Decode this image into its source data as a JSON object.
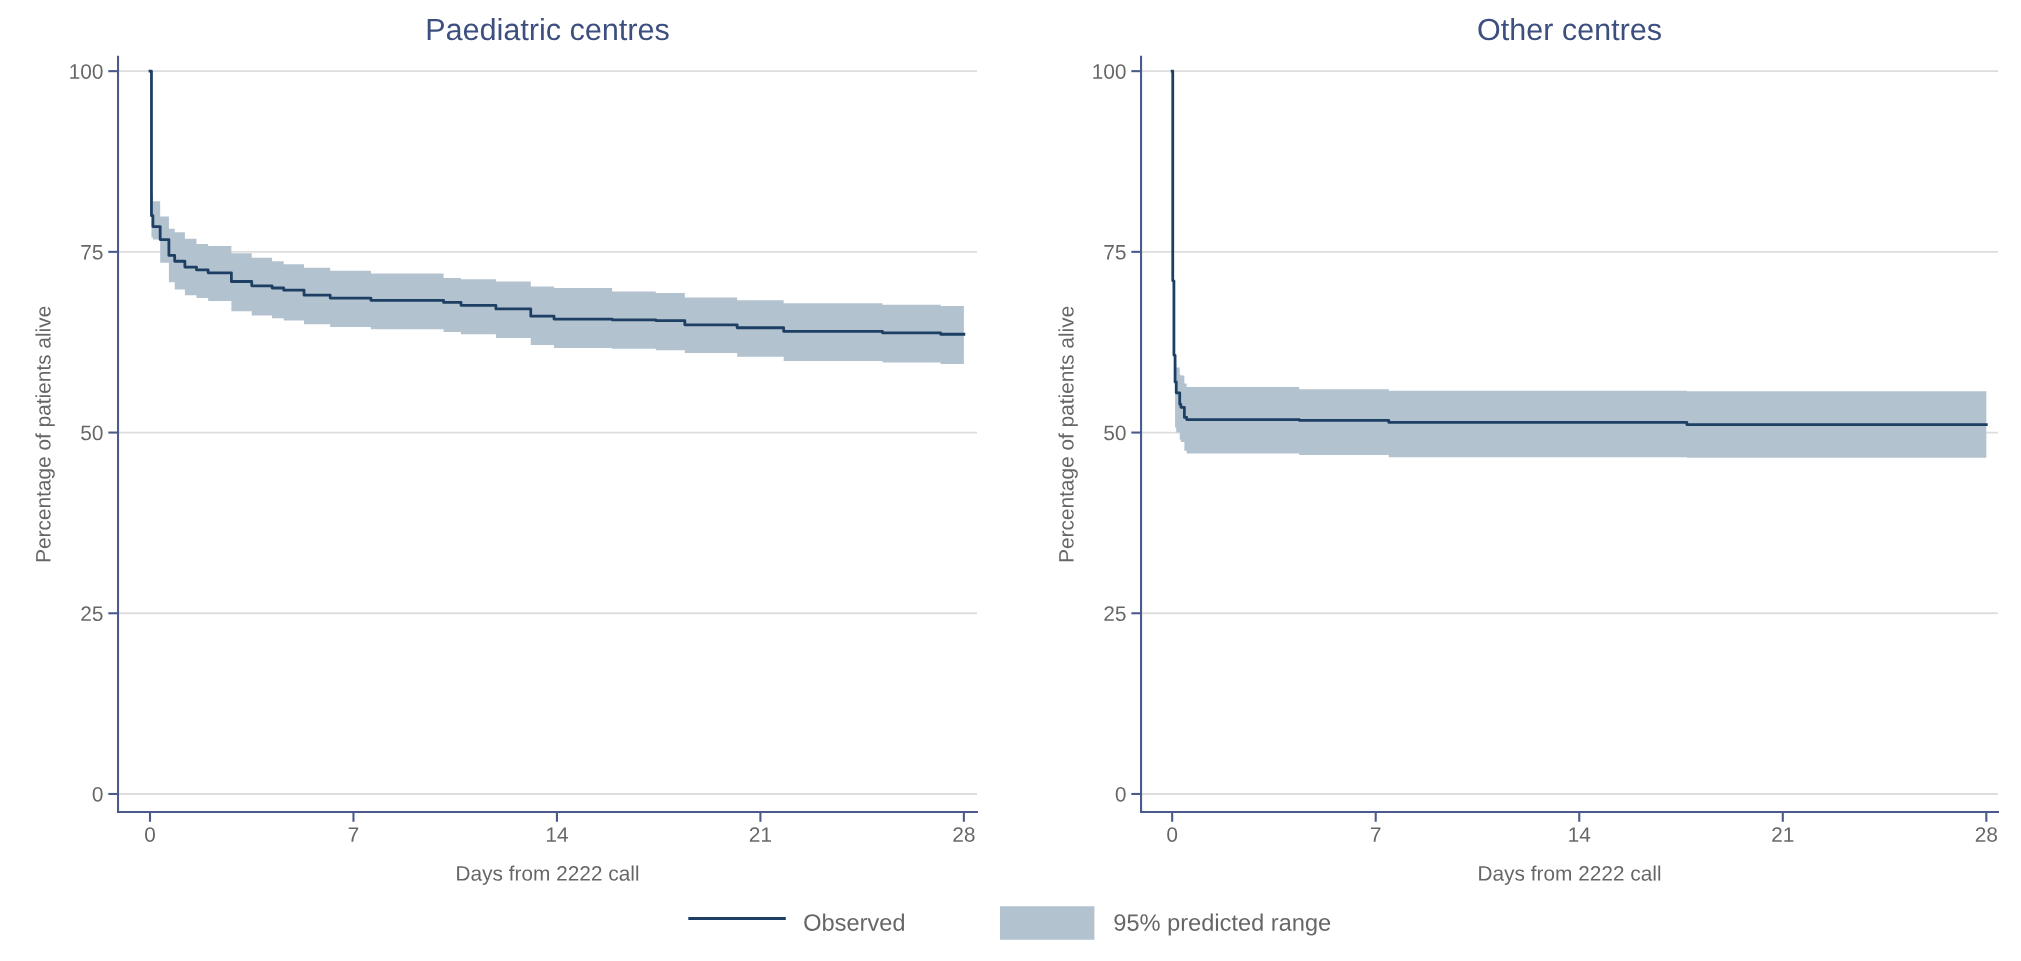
{
  "chart_data": [
    {
      "type": "step",
      "title": "Paediatric centres",
      "xlabel": "Days from 2222 call",
      "ylabel": "Percentage of patients alive",
      "xlim": [
        -1.1,
        28.45
      ],
      "ylim": [
        -2.5,
        102
      ],
      "xticks": [
        0,
        7,
        14,
        21,
        28
      ],
      "yticks": [
        0,
        25,
        50,
        75,
        100
      ],
      "grid": "y",
      "legend": "bottom",
      "annotations": [
        "95% predicted range"
      ],
      "series": [
        {
          "name": "Observed",
          "color": "#1c3f63",
          "x": [
            0,
            0.05,
            0.1,
            0.35,
            0.65,
            0.85,
            1.2,
            1.6,
            2.0,
            2.8,
            3.5,
            4.2,
            4.6,
            5.3,
            6.2,
            7.6,
            10.1,
            10.7,
            11.9,
            13.1,
            13.9,
            15.9,
            17.4,
            18.4,
            20.2,
            21.8,
            25.2,
            27.2,
            28
          ],
          "values": [
            100,
            80,
            78.5,
            76.7,
            74.5,
            73.7,
            72.9,
            72.5,
            72.1,
            70.9,
            70.3,
            70.0,
            69.7,
            69.0,
            68.6,
            68.3,
            68.0,
            67.6,
            67.1,
            66.1,
            65.7,
            65.6,
            65.5,
            64.9,
            64.5,
            64.0,
            63.8,
            63.6,
            63.6
          ],
          "upper": [
            100,
            83,
            82,
            79.9,
            78.2,
            77.7,
            76.8,
            76.1,
            75.8,
            74.8,
            74.2,
            73.7,
            73.3,
            72.8,
            72.4,
            72.0,
            71.4,
            71.2,
            70.9,
            70.2,
            70.0,
            69.5,
            69.3,
            68.7,
            68.3,
            67.9,
            67.7,
            67.5,
            67.5
          ],
          "lower": [
            100,
            77,
            76.7,
            73.5,
            70.8,
            69.8,
            69.0,
            68.6,
            68.2,
            66.8,
            66.2,
            65.8,
            65.5,
            65.0,
            64.6,
            64.3,
            63.9,
            63.6,
            63.1,
            62.1,
            61.7,
            61.6,
            61.4,
            61.0,
            60.5,
            59.9,
            59.7,
            59.5,
            59.5
          ]
        }
      ]
    },
    {
      "type": "step",
      "title": "Other centres",
      "xlabel": "Days from 2222 call",
      "ylabel": "Percentage of patients alive",
      "xlim": [
        -1.07,
        28.4
      ],
      "ylim": [
        -2.5,
        102
      ],
      "xticks": [
        0,
        7,
        14,
        21,
        28
      ],
      "yticks": [
        0,
        25,
        50,
        75,
        100
      ],
      "grid": "y",
      "series": [
        {
          "color": "#1c3f63",
          "x": [
            0,
            0.02,
            0.06,
            0.1,
            0.14,
            0.26,
            0.3,
            0.42,
            0.5,
            4.37,
            7.45,
            17.7,
            28
          ],
          "values": [
            100,
            71,
            60.7,
            57,
            55.5,
            53.9,
            53.5,
            52.1,
            51.8,
            51.7,
            51.4,
            51.1,
            51.1
          ],
          "upper": [
            100,
            72,
            60.3,
            59.5,
            59,
            58,
            57.9,
            56.8,
            56.3,
            56.0,
            55.8,
            55.7,
            55.7
          ],
          "lower": [
            100,
            70,
            58,
            50.7,
            50,
            49,
            48.7,
            47.5,
            47.1,
            46.9,
            46.6,
            46.5,
            46.5
          ]
        }
      ]
    }
  ]
}
